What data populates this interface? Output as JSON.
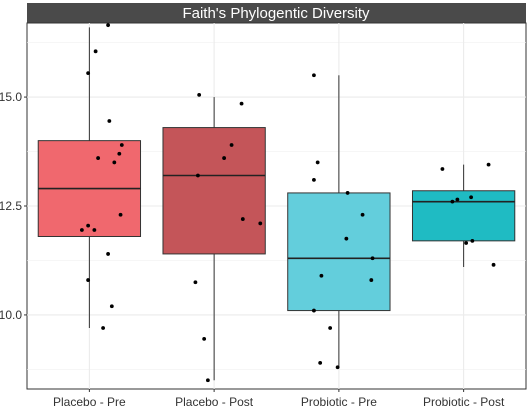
{
  "chart_data": {
    "type": "boxplot",
    "title": "Faith's Phylogentic Diversity",
    "xlabel": "",
    "ylabel": "",
    "ylim": [
      8.3,
      16.7
    ],
    "yticks": [
      10.0,
      12.5,
      15.0
    ],
    "ytick_labels": [
      "10.0",
      "12.5",
      "15.0"
    ],
    "grid": true,
    "legend": "none",
    "categories": [
      "Placebo - Pre",
      "Placebo - Post",
      "Probiotic - Pre",
      "Probiotic - Post"
    ],
    "boxes": [
      {
        "category": "Placebo - Pre",
        "color": "#F0686E",
        "whisker_low": 9.7,
        "q1": 11.8,
        "median": 12.9,
        "q3": 14.0,
        "whisker_high": 16.6
      },
      {
        "category": "Placebo - Post",
        "color": "#C45559",
        "whisker_low": 8.5,
        "q1": 11.4,
        "median": 13.2,
        "q3": 14.3,
        "whisker_high": 15.0
      },
      {
        "category": "Probiotic - Pre",
        "color": "#63CEDC",
        "whisker_low": 8.8,
        "q1": 10.1,
        "median": 11.3,
        "q3": 12.8,
        "whisker_high": 15.5
      },
      {
        "category": "Probiotic - Post",
        "color": "#1FBBC3",
        "whisker_low": 11.1,
        "q1": 11.7,
        "median": 12.6,
        "q3": 12.85,
        "whisker_high": 13.45
      }
    ],
    "points": [
      {
        "category": "Placebo - Pre",
        "jitter": 0.15,
        "y": 16.65
      },
      {
        "category": "Placebo - Pre",
        "jitter": 0.05,
        "y": 16.05
      },
      {
        "category": "Placebo - Pre",
        "jitter": -0.01,
        "y": 15.55
      },
      {
        "category": "Placebo - Pre",
        "jitter": 0.16,
        "y": 14.45
      },
      {
        "category": "Placebo - Pre",
        "jitter": 0.26,
        "y": 13.9
      },
      {
        "category": "Placebo - Pre",
        "jitter": 0.24,
        "y": 13.7
      },
      {
        "category": "Placebo - Pre",
        "jitter": 0.07,
        "y": 13.6
      },
      {
        "category": "Placebo - Pre",
        "jitter": 0.2,
        "y": 13.5
      },
      {
        "category": "Placebo - Pre",
        "jitter": 0.25,
        "y": 12.3
      },
      {
        "category": "Placebo - Pre",
        "jitter": -0.01,
        "y": 12.05
      },
      {
        "category": "Placebo - Pre",
        "jitter": -0.06,
        "y": 11.95
      },
      {
        "category": "Placebo - Pre",
        "jitter": 0.04,
        "y": 11.95
      },
      {
        "category": "Placebo - Pre",
        "jitter": 0.15,
        "y": 11.4
      },
      {
        "category": "Placebo - Pre",
        "jitter": -0.01,
        "y": 10.8
      },
      {
        "category": "Placebo - Pre",
        "jitter": 0.18,
        "y": 10.2
      },
      {
        "category": "Placebo - Pre",
        "jitter": 0.11,
        "y": 9.7
      },
      {
        "category": "Placebo - Post",
        "jitter": -0.12,
        "y": 15.05
      },
      {
        "category": "Placebo - Post",
        "jitter": 0.22,
        "y": 14.85
      },
      {
        "category": "Placebo - Post",
        "jitter": 0.14,
        "y": 13.9
      },
      {
        "category": "Placebo - Post",
        "jitter": 0.08,
        "y": 13.6
      },
      {
        "category": "Placebo - Post",
        "jitter": -0.13,
        "y": 13.2
      },
      {
        "category": "Placebo - Post",
        "jitter": 0.23,
        "y": 12.2
      },
      {
        "category": "Placebo - Post",
        "jitter": 0.37,
        "y": 12.1
      },
      {
        "category": "Placebo - Post",
        "jitter": -0.15,
        "y": 10.75
      },
      {
        "category": "Placebo - Post",
        "jitter": -0.08,
        "y": 9.45
      },
      {
        "category": "Placebo - Post",
        "jitter": -0.05,
        "y": 8.5
      },
      {
        "category": "Probiotic - Pre",
        "jitter": -0.2,
        "y": 15.5
      },
      {
        "category": "Probiotic - Pre",
        "jitter": -0.17,
        "y": 13.5
      },
      {
        "category": "Probiotic - Pre",
        "jitter": -0.2,
        "y": 13.1
      },
      {
        "category": "Probiotic - Pre",
        "jitter": 0.07,
        "y": 12.8
      },
      {
        "category": "Probiotic - Pre",
        "jitter": 0.19,
        "y": 12.3
      },
      {
        "category": "Probiotic - Pre",
        "jitter": 0.06,
        "y": 11.75
      },
      {
        "category": "Probiotic - Pre",
        "jitter": 0.27,
        "y": 11.3
      },
      {
        "category": "Probiotic - Pre",
        "jitter": -0.14,
        "y": 10.9
      },
      {
        "category": "Probiotic - Pre",
        "jitter": 0.26,
        "y": 10.8
      },
      {
        "category": "Probiotic - Pre",
        "jitter": -0.2,
        "y": 10.1
      },
      {
        "category": "Probiotic - Pre",
        "jitter": -0.07,
        "y": 9.7
      },
      {
        "category": "Probiotic - Pre",
        "jitter": -0.15,
        "y": 8.9
      },
      {
        "category": "Probiotic - Pre",
        "jitter": -0.01,
        "y": 8.8
      },
      {
        "category": "Probiotic - Post",
        "jitter": -0.17,
        "y": 13.35
      },
      {
        "category": "Probiotic - Post",
        "jitter": 0.2,
        "y": 13.45
      },
      {
        "category": "Probiotic - Post",
        "jitter": 0.06,
        "y": 12.7
      },
      {
        "category": "Probiotic - Post",
        "jitter": -0.05,
        "y": 12.65
      },
      {
        "category": "Probiotic - Post",
        "jitter": -0.09,
        "y": 12.6
      },
      {
        "category": "Probiotic - Post",
        "jitter": 0.02,
        "y": 11.65
      },
      {
        "category": "Probiotic - Post",
        "jitter": 0.07,
        "y": 11.7
      },
      {
        "category": "Probiotic - Post",
        "jitter": 0.24,
        "y": 11.15
      }
    ]
  }
}
